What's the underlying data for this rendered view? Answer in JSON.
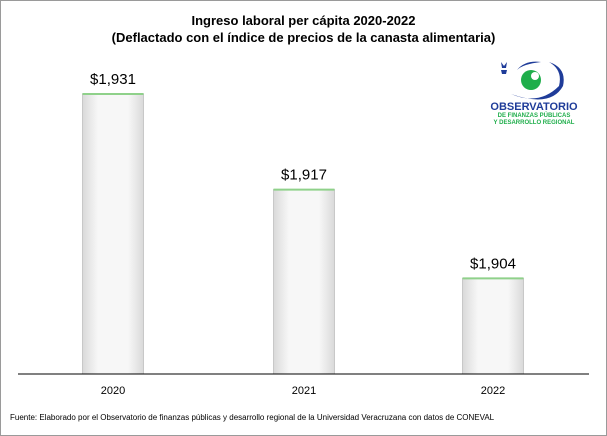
{
  "chart_data": {
    "type": "bar",
    "title": "Ingreso laboral per cápita 2020-2022",
    "subtitle": "(Deflactado con el índice de precios de la canasta alimentaria)",
    "categories": [
      "2020",
      "2021",
      "2022"
    ],
    "values": [
      1931,
      1917,
      1904
    ],
    "data_labels": [
      "$1,931",
      "$1,917",
      "$1,904"
    ],
    "xlabel": "",
    "ylabel": "",
    "ylim": [
      1890,
      1931
    ],
    "grid": false,
    "bar_edge_color": "#8fd18a"
  },
  "logo": {
    "name": "OBSERVATORIO",
    "line2": "DE FINANZAS PÚBLICAS",
    "line3": "Y DESARROLLO REGIONAL",
    "blue": "#1f3c99",
    "green": "#1fae4b"
  },
  "source": "Fuente: Elaborado por el Observatorio de finanzas públicas y desarrollo regional de la Universidad Veracruzana con datos de CONEVAL"
}
